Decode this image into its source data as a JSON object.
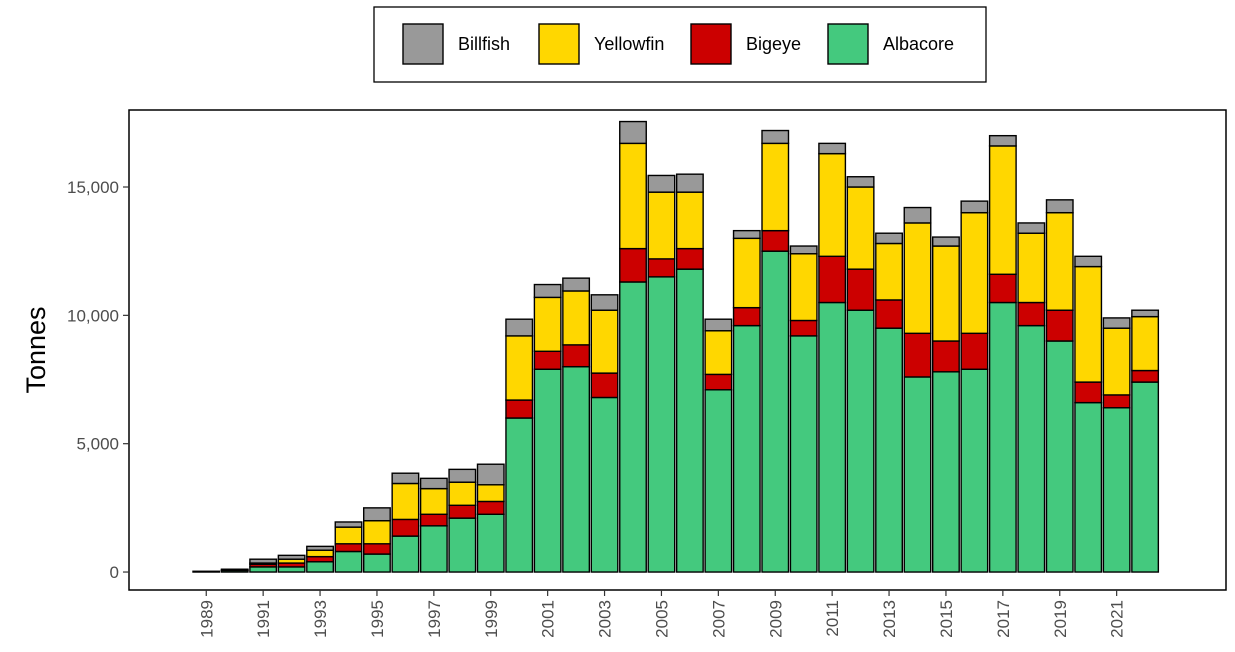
{
  "chart_data": {
    "type": "bar",
    "stacked": true,
    "title": "",
    "xlabel": "",
    "ylabel": "Tonnes",
    "ylim": [
      -700,
      18000
    ],
    "y_ticks": [
      0,
      5000,
      10000,
      15000
    ],
    "y_tick_labels": [
      "0",
      "5,000",
      "10,000",
      "15,000"
    ],
    "legend_position": "top",
    "grid": false,
    "categories": [
      "1989",
      "1990",
      "1991",
      "1992",
      "1993",
      "1994",
      "1995",
      "1996",
      "1997",
      "1998",
      "1999",
      "2000",
      "2001",
      "2002",
      "2003",
      "2004",
      "2005",
      "2006",
      "2007",
      "2008",
      "2009",
      "2010",
      "2011",
      "2012",
      "2013",
      "2014",
      "2015",
      "2016",
      "2017",
      "2018",
      "2019",
      "2020",
      "2021",
      "2022"
    ],
    "x_tick_labels": [
      "1989",
      "1991",
      "1993",
      "1995",
      "1997",
      "1999",
      "2001",
      "2003",
      "2005",
      "2007",
      "2009",
      "2011",
      "2013",
      "2015",
      "2017",
      "2019",
      "2021"
    ],
    "series": [
      {
        "name": "Albacore",
        "color": "#44C97E",
        "values": [
          30,
          60,
          200,
          200,
          400,
          800,
          700,
          1400,
          1800,
          2100,
          2250,
          6000,
          7900,
          8000,
          6800,
          11300,
          11500,
          11800,
          7100,
          9600,
          12500,
          9200,
          10500,
          10200,
          9500,
          7600,
          7800,
          7900,
          10500,
          9600,
          9000,
          6600,
          6400,
          7400
        ]
      },
      {
        "name": "Bigeye",
        "color": "#CC0000",
        "values": [
          0,
          20,
          100,
          150,
          200,
          300,
          400,
          650,
          450,
          500,
          500,
          700,
          700,
          850,
          950,
          1300,
          700,
          800,
          600,
          700,
          800,
          600,
          1800,
          1600,
          1100,
          1700,
          1200,
          1400,
          1100,
          900,
          1200,
          800,
          500,
          450
        ]
      },
      {
        "name": "Yellowfin",
        "color": "#FFD700",
        "values": [
          0,
          30,
          50,
          150,
          250,
          650,
          900,
          1400,
          1000,
          900,
          650,
          2500,
          2100,
          2100,
          2450,
          4100,
          2600,
          2200,
          1700,
          2700,
          3400,
          2600,
          4000,
          3200,
          2200,
          4300,
          3700,
          4700,
          5000,
          2700,
          3800,
          4500,
          2600,
          2100
        ]
      },
      {
        "name": "Billfish",
        "color": "#999999",
        "values": [
          0,
          0,
          150,
          150,
          150,
          200,
          500,
          400,
          400,
          500,
          800,
          650,
          500,
          500,
          600,
          850,
          650,
          700,
          450,
          300,
          500,
          300,
          400,
          400,
          400,
          600,
          350,
          450,
          400,
          400,
          500,
          400,
          400,
          250
        ]
      }
    ]
  }
}
